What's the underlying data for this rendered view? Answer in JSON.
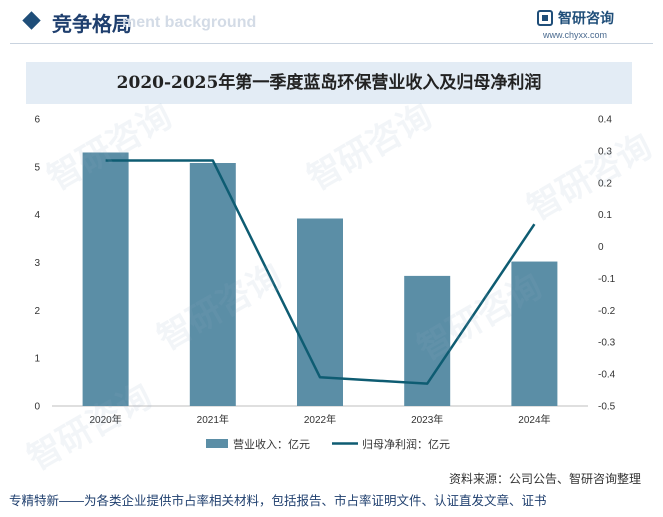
{
  "header": {
    "title": "竞争格局",
    "ghost_text": "ment background",
    "logo_name": "智研咨询",
    "logo_url": "www.chyxx.com"
  },
  "watermark_text": "智研咨询",
  "chart_data": {
    "type": "bar+line",
    "title": "2020-2025年第一季度蓝岛环保营业收入及归母净利润",
    "categories": [
      "2020年",
      "2021年",
      "2022年",
      "2023年",
      "2024年"
    ],
    "series": [
      {
        "name": "营业收入：亿元",
        "type": "bar",
        "axis": "left",
        "color": "#5b8ea6",
        "values": [
          5.3,
          5.08,
          3.92,
          2.72,
          3.02
        ]
      },
      {
        "name": "归母净利润：亿元",
        "type": "line",
        "axis": "right",
        "color": "#0e5c72",
        "values": [
          0.27,
          0.27,
          -0.41,
          -0.43,
          0.07
        ]
      }
    ],
    "left_axis": {
      "min": 0,
      "max": 6,
      "ticks": [
        "0",
        "1",
        "2",
        "3",
        "4",
        "5",
        "6"
      ]
    },
    "right_axis": {
      "min": -0.5,
      "max": 0.4,
      "ticks": [
        "-0.5",
        "-0.4",
        "-0.3",
        "-0.2",
        "-0.1",
        "0",
        "0.1",
        "0.2",
        "0.3",
        "0.4"
      ]
    },
    "legend_position": "bottom",
    "grid": false
  },
  "source": "资料来源：公司公告、智研咨询整理",
  "footer": "专精特新——为各类企业提供市占率相关材料，包括报告、市占率证明文件、认证直发文章、证书"
}
